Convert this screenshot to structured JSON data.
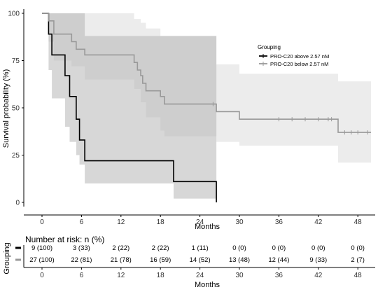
{
  "chart_data": {
    "type": "line",
    "subtype": "kaplan-meier",
    "xlabel": "Months",
    "ylabel": "Survival probability (%)",
    "xlim": [
      0,
      50
    ],
    "ylim": [
      0,
      100
    ],
    "x_ticks": [
      0,
      6,
      12,
      18,
      24,
      30,
      36,
      42,
      48
    ],
    "y_ticks": [
      0,
      25,
      50,
      75,
      100
    ],
    "grid": false,
    "legend": {
      "title": "Grouping",
      "placement": "top-right",
      "entries": [
        "PRO-C20 above 2.57 nM",
        "PRO-C20 below 2.57 nM"
      ]
    },
    "series": [
      {
        "name": "PRO-C20 above 2.57 nM",
        "color": "#000000",
        "step_points": [
          [
            0,
            100
          ],
          [
            1,
            100
          ],
          [
            1,
            89
          ],
          [
            1.5,
            89
          ],
          [
            1.5,
            78
          ],
          [
            3.5,
            78
          ],
          [
            3.5,
            67
          ],
          [
            4.2,
            67
          ],
          [
            4.2,
            56
          ],
          [
            5.2,
            56
          ],
          [
            5.2,
            44
          ],
          [
            5.7,
            44
          ],
          [
            5.7,
            33
          ],
          [
            6.5,
            33
          ],
          [
            6.5,
            22
          ],
          [
            20,
            22
          ],
          [
            20,
            11
          ],
          [
            26.5,
            11
          ],
          [
            26.5,
            0
          ]
        ],
        "ci_band": [
          [
            0,
            100,
            100
          ],
          [
            1,
            100,
            70
          ],
          [
            1.5,
            100,
            55
          ],
          [
            3.5,
            100,
            40
          ],
          [
            4.2,
            100,
            32
          ],
          [
            5.2,
            100,
            25
          ],
          [
            5.7,
            100,
            20
          ],
          [
            6.5,
            88,
            10
          ],
          [
            20,
            88,
            2
          ],
          [
            26.5,
            88,
            2
          ]
        ],
        "censor_x": []
      },
      {
        "name": "PRO-C20 below 2.57 nM",
        "color": "#999999",
        "step_points": [
          [
            0,
            100
          ],
          [
            1,
            100
          ],
          [
            1,
            96
          ],
          [
            1.8,
            96
          ],
          [
            1.8,
            89
          ],
          [
            4.5,
            89
          ],
          [
            4.5,
            85
          ],
          [
            5.2,
            85
          ],
          [
            5.2,
            81
          ],
          [
            6.5,
            81
          ],
          [
            6.5,
            78
          ],
          [
            14,
            78
          ],
          [
            14,
            74
          ],
          [
            14.5,
            74
          ],
          [
            14.5,
            70
          ],
          [
            15,
            70
          ],
          [
            15,
            67
          ],
          [
            15.3,
            67
          ],
          [
            15.3,
            63
          ],
          [
            15.8,
            63
          ],
          [
            15.8,
            59
          ],
          [
            18,
            59
          ],
          [
            18,
            56
          ],
          [
            18.6,
            56
          ],
          [
            18.6,
            52
          ],
          [
            26.5,
            52
          ],
          [
            26.5,
            48
          ],
          [
            30,
            48
          ],
          [
            30,
            44
          ],
          [
            45,
            44
          ],
          [
            45,
            37
          ],
          [
            50,
            37
          ]
        ],
        "ci_band": [
          [
            0,
            100,
            100
          ],
          [
            1,
            100,
            85
          ],
          [
            1.8,
            100,
            75
          ],
          [
            4.5,
            100,
            72
          ],
          [
            6.5,
            100,
            65
          ],
          [
            14,
            97,
            60
          ],
          [
            15,
            95,
            53
          ],
          [
            15.8,
            92,
            45
          ],
          [
            18,
            88,
            38
          ],
          [
            18.6,
            88,
            35
          ],
          [
            26.5,
            73,
            32
          ],
          [
            30,
            68,
            30
          ],
          [
            45,
            64,
            21
          ],
          [
            50,
            64,
            21
          ]
        ],
        "censor_x": [
          26,
          36,
          38,
          40,
          42,
          43.5,
          44,
          46,
          47,
          48,
          49.5
        ]
      }
    ],
    "risk_table": {
      "title": "Number at risk: n (%)",
      "y_title": "Grouping",
      "xlabel": "Months",
      "times": [
        0,
        6,
        12,
        18,
        24,
        30,
        36,
        42,
        48
      ],
      "rows": [
        {
          "group": "PRO-C20 above 2.57 nM",
          "color": "#000000",
          "values": [
            "9 (100)",
            "3 (33)",
            "2 (22)",
            "2 (22)",
            "1 (11)",
            "0 (0)",
            "0 (0)",
            "0 (0)",
            "0 (0)"
          ]
        },
        {
          "group": "PRO-C20 below 2.57 nM",
          "color": "#999999",
          "values": [
            "27 (100)",
            "22 (81)",
            "21 (78)",
            "16 (59)",
            "14 (52)",
            "13 (48)",
            "12 (44)",
            "9 (33)",
            "2 (7)"
          ]
        }
      ]
    }
  }
}
